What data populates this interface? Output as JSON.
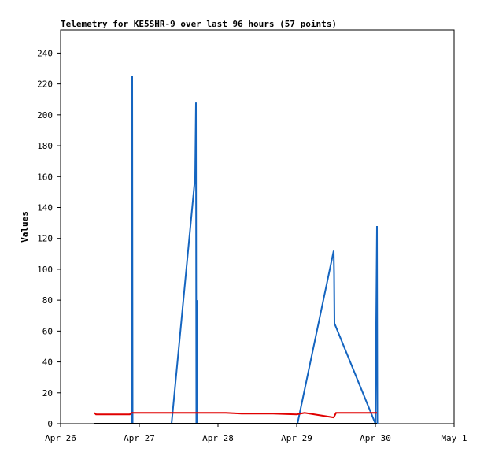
{
  "chart_data": {
    "type": "line",
    "title": "Telemetry for KE5SHR-9 over last 96 hours (57 points)",
    "y_label": "Values",
    "xlim": [
      0,
      5
    ],
    "ylim": [
      0,
      255
    ],
    "xticks": [
      {
        "value": 0,
        "label": "Apr 26"
      },
      {
        "value": 1,
        "label": "Apr 27"
      },
      {
        "value": 2,
        "label": "Apr 28"
      },
      {
        "value": 3,
        "label": "Apr 29"
      },
      {
        "value": 4,
        "label": "Apr 30"
      },
      {
        "value": 5,
        "label": "May 1"
      }
    ],
    "yticks": [
      0,
      20,
      40,
      60,
      80,
      100,
      120,
      140,
      160,
      180,
      200,
      220,
      240
    ],
    "series": [
      {
        "color": "#1565c0",
        "x": [
          0.91,
          0.91,
          0.915,
          1.41,
          1.71,
          1.72,
          1.725,
          1.73,
          1.735,
          3.01,
          3.47,
          3.475,
          3.48,
          4.0,
          4.01,
          4.02,
          4.025
        ],
        "values": [
          0,
          225,
          0,
          0,
          160,
          208,
          0,
          80,
          0,
          0,
          112,
          97,
          65,
          0,
          65,
          128,
          0
        ]
      },
      {
        "color": "#e00000",
        "x": [
          0.43,
          0.45,
          0.88,
          0.9,
          2.1,
          2.3,
          2.7,
          3.0,
          3.1,
          3.47,
          3.5,
          4.02
        ],
        "values": [
          7,
          6,
          6,
          7,
          7,
          6.5,
          6.5,
          6,
          7,
          4,
          7,
          7
        ]
      },
      {
        "color": "#000000",
        "x": [
          0.43,
          4.02
        ],
        "values": [
          0,
          0
        ]
      }
    ]
  }
}
